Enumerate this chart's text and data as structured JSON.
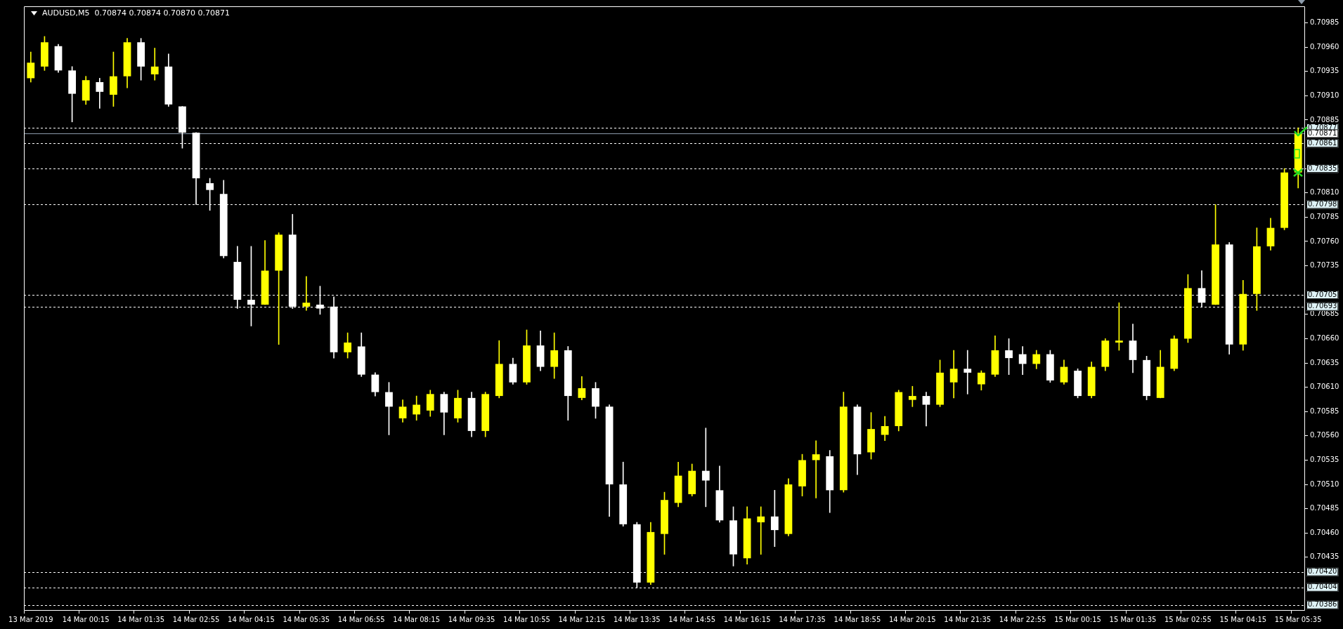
{
  "chart_data": {
    "type": "candlestick",
    "title": "AUDUSD,M5  0.70874 0.70874 0.70870 0.70871",
    "categories": [
      "13 Mar 2019",
      null,
      null,
      null,
      "14 Mar 00:15",
      null,
      null,
      null,
      "14 Mar 01:35",
      null,
      null,
      null,
      "14 Mar 02:55",
      null,
      null,
      null,
      "14 Mar 04:15",
      null,
      null,
      null,
      "14 Mar 05:35",
      null,
      null,
      null,
      "14 Mar 06:55",
      null,
      null,
      null,
      "14 Mar 08:15",
      null,
      null,
      null,
      "14 Mar 09:35",
      null,
      null,
      null,
      "14 Mar 10:55",
      null,
      null,
      null,
      "14 Mar 12:15",
      null,
      null,
      null,
      "14 Mar 13:35",
      null,
      null,
      null,
      "14 Mar 14:55",
      null,
      null,
      null,
      "14 Mar 16:15",
      null,
      null,
      null,
      "14 Mar 17:35",
      null,
      null,
      null,
      "14 Mar 18:55",
      null,
      null,
      null,
      "14 Mar 20:15",
      null,
      null,
      null,
      "14 Mar 21:35",
      null,
      null,
      null,
      "14 Mar 22:55",
      null,
      null,
      null,
      "15 Mar 00:15",
      null,
      null,
      null,
      "15 Mar 01:35",
      null,
      null,
      null,
      "15 Mar 02:55",
      null,
      null,
      null,
      "15 Mar 04:15",
      null,
      null,
      null,
      "15 Mar 05:35"
    ],
    "ohlc": [
      [
        0.70928,
        0.70955,
        0.70924,
        0.70944
      ],
      [
        0.7094,
        0.70971,
        0.70936,
        0.70965
      ],
      [
        0.70961,
        0.70963,
        0.70934,
        0.70936
      ],
      [
        0.70936,
        0.7094,
        0.70883,
        0.70912
      ],
      [
        0.70905,
        0.7093,
        0.70901,
        0.70926
      ],
      [
        0.70924,
        0.70928,
        0.70897,
        0.70914
      ],
      [
        0.70911,
        0.70955,
        0.70899,
        0.7093
      ],
      [
        0.7093,
        0.70969,
        0.70918,
        0.70965
      ],
      [
        0.70965,
        0.70969,
        0.70926,
        0.7094
      ],
      [
        0.70932,
        0.70959,
        0.70926,
        0.7094
      ],
      [
        0.7094,
        0.70953,
        0.70899,
        0.70901
      ],
      [
        0.70899,
        0.70899,
        0.70856,
        0.70872
      ],
      [
        0.70872,
        0.70872,
        0.70798,
        0.70825
      ],
      [
        0.7082,
        0.70825,
        0.70792,
        0.70813
      ],
      [
        0.70809,
        0.70823,
        0.70743,
        0.70745
      ],
      [
        0.70739,
        0.70755,
        0.70691,
        0.707
      ],
      [
        0.707,
        0.70755,
        0.70673,
        0.70695
      ],
      [
        0.70695,
        0.70761,
        0.70695,
        0.7073
      ],
      [
        0.7073,
        0.70769,
        0.70654,
        0.70767
      ],
      [
        0.70767,
        0.70788,
        0.70691,
        0.70693
      ],
      [
        0.70693,
        0.70724,
        0.70689,
        0.70697
      ],
      [
        0.70695,
        0.70714,
        0.70685,
        0.70691
      ],
      [
        0.70693,
        0.70703,
        0.7064,
        0.70646
      ],
      [
        0.70646,
        0.70666,
        0.7064,
        0.70656
      ],
      [
        0.70652,
        0.70666,
        0.70621,
        0.70623
      ],
      [
        0.70623,
        0.70625,
        0.70601,
        0.70605
      ],
      [
        0.70605,
        0.70615,
        0.70561,
        0.7059
      ],
      [
        0.70578,
        0.70597,
        0.70574,
        0.7059
      ],
      [
        0.70582,
        0.70601,
        0.70576,
        0.70592
      ],
      [
        0.70586,
        0.70607,
        0.7058,
        0.70603
      ],
      [
        0.70603,
        0.70605,
        0.70561,
        0.70584
      ],
      [
        0.70578,
        0.70607,
        0.70574,
        0.70599
      ],
      [
        0.70599,
        0.70605,
        0.70559,
        0.70565
      ],
      [
        0.70565,
        0.70605,
        0.70559,
        0.70603
      ],
      [
        0.70601,
        0.70658,
        0.70599,
        0.70634
      ],
      [
        0.70634,
        0.7064,
        0.70613,
        0.70615
      ],
      [
        0.70615,
        0.70669,
        0.70613,
        0.70653
      ],
      [
        0.70653,
        0.70668,
        0.70627,
        0.70631
      ],
      [
        0.70631,
        0.70666,
        0.70619,
        0.70648
      ],
      [
        0.70648,
        0.70652,
        0.70576,
        0.70601
      ],
      [
        0.70599,
        0.70621,
        0.70597,
        0.70609
      ],
      [
        0.70609,
        0.70615,
        0.70578,
        0.7059
      ],
      [
        0.7059,
        0.70592,
        0.70477,
        0.7051
      ],
      [
        0.7051,
        0.70533,
        0.70467,
        0.70469
      ],
      [
        0.70469,
        0.70471,
        0.70404,
        0.70409
      ],
      [
        0.70409,
        0.70471,
        0.70407,
        0.70461
      ],
      [
        0.70459,
        0.70502,
        0.70438,
        0.70494
      ],
      [
        0.70491,
        0.70533,
        0.70487,
        0.70519
      ],
      [
        0.705,
        0.70531,
        0.70498,
        0.70524
      ],
      [
        0.70524,
        0.70568,
        0.70487,
        0.70514
      ],
      [
        0.70504,
        0.70529,
        0.70471,
        0.70473
      ],
      [
        0.70473,
        0.70487,
        0.70426,
        0.70438
      ],
      [
        0.70434,
        0.70487,
        0.70428,
        0.70475
      ],
      [
        0.70471,
        0.70487,
        0.70438,
        0.70477
      ],
      [
        0.70477,
        0.70504,
        0.70446,
        0.70463
      ],
      [
        0.70459,
        0.70516,
        0.70457,
        0.7051
      ],
      [
        0.70508,
        0.70541,
        0.70498,
        0.70535
      ],
      [
        0.70535,
        0.70555,
        0.70496,
        0.70541
      ],
      [
        0.70539,
        0.70545,
        0.70481,
        0.70504
      ],
      [
        0.70504,
        0.70605,
        0.70502,
        0.7059
      ],
      [
        0.7059,
        0.70592,
        0.7052,
        0.70541
      ],
      [
        0.70543,
        0.70584,
        0.70536,
        0.70567
      ],
      [
        0.70561,
        0.7058,
        0.70555,
        0.7057
      ],
      [
        0.7057,
        0.70607,
        0.70565,
        0.70605
      ],
      [
        0.70597,
        0.70611,
        0.7059,
        0.70601
      ],
      [
        0.70601,
        0.70605,
        0.7057,
        0.70592
      ],
      [
        0.70592,
        0.70638,
        0.7059,
        0.70625
      ],
      [
        0.70615,
        0.70648,
        0.70599,
        0.70629
      ],
      [
        0.70629,
        0.70648,
        0.70603,
        0.70625
      ],
      [
        0.70613,
        0.70627,
        0.70607,
        0.70625
      ],
      [
        0.70623,
        0.70663,
        0.70621,
        0.70648
      ],
      [
        0.70648,
        0.7066,
        0.70623,
        0.7064
      ],
      [
        0.70644,
        0.70652,
        0.70623,
        0.70634
      ],
      [
        0.70634,
        0.70648,
        0.70629,
        0.70644
      ],
      [
        0.70644,
        0.70648,
        0.70615,
        0.70617
      ],
      [
        0.70615,
        0.70638,
        0.70613,
        0.70631
      ],
      [
        0.70627,
        0.70629,
        0.70599,
        0.70601
      ],
      [
        0.70601,
        0.70636,
        0.70599,
        0.70631
      ],
      [
        0.70631,
        0.7066,
        0.70627,
        0.70658
      ],
      [
        0.70656,
        0.70697,
        0.70648,
        0.70658
      ],
      [
        0.70658,
        0.70675,
        0.70625,
        0.70638
      ],
      [
        0.70638,
        0.70642,
        0.70597,
        0.70601
      ],
      [
        0.70599,
        0.70648,
        0.70599,
        0.70631
      ],
      [
        0.70629,
        0.70663,
        0.70627,
        0.7066
      ],
      [
        0.7066,
        0.70726,
        0.70656,
        0.70712
      ],
      [
        0.70712,
        0.7073,
        0.70693,
        0.70697
      ],
      [
        0.70695,
        0.70798,
        0.70695,
        0.70757
      ],
      [
        0.70757,
        0.70759,
        0.70644,
        0.70654
      ],
      [
        0.70654,
        0.7072,
        0.70648,
        0.70706
      ],
      [
        0.70706,
        0.70774,
        0.70689,
        0.70755
      ],
      [
        0.70755,
        0.70784,
        0.70751,
        0.70774
      ],
      [
        0.70774,
        0.70835,
        0.70772,
        0.70831
      ],
      [
        0.70831,
        0.70877,
        0.70815,
        0.70871
      ]
    ],
    "colors": [
      "#ffff00",
      "#ffff00",
      "#ffffff",
      "#ffffff",
      "#ffff00",
      "#ffffff",
      "#ffff00",
      "#ffff00",
      "#ffffff",
      "#ffff00",
      "#ffffff",
      "#ffffff",
      "#ffffff",
      "#ffffff",
      "#ffffff",
      "#ffffff",
      "#ffffff",
      "#ffff00",
      "#ffff00",
      "#ffffff",
      "#ffff00",
      "#ffffff",
      "#ffffff",
      "#ffff00",
      "#ffffff",
      "#ffffff",
      "#ffffff",
      "#ffff00",
      "#ffff00",
      "#ffff00",
      "#ffffff",
      "#ffff00",
      "#ffffff",
      "#ffff00",
      "#ffff00",
      "#ffffff",
      "#ffff00",
      "#ffffff",
      "#ffff00",
      "#ffffff",
      "#ffff00",
      "#ffffff",
      "#ffffff",
      "#ffffff",
      "#ffffff",
      "#ffff00",
      "#ffff00",
      "#ffff00",
      "#ffff00",
      "#ffffff",
      "#ffffff",
      "#ffffff",
      "#ffff00",
      "#ffff00",
      "#ffffff",
      "#ffff00",
      "#ffff00",
      "#ffff00",
      "#ffffff",
      "#ffff00",
      "#ffffff",
      "#ffff00",
      "#ffff00",
      "#ffff00",
      "#ffff00",
      "#ffffff",
      "#ffff00",
      "#ffff00",
      "#ffffff",
      "#ffff00",
      "#ffff00",
      "#ffffff",
      "#ffffff",
      "#ffff00",
      "#ffffff",
      "#ffff00",
      "#ffffff",
      "#ffff00",
      "#ffff00",
      "#ffff00",
      "#ffffff",
      "#ffffff",
      "#ffff00",
      "#ffff00",
      "#ffff00",
      "#ffffff",
      "#ffff00",
      "#ffffff",
      "#ffff00",
      "#ffff00",
      "#ffff00",
      "#ffff00",
      "#ffff00"
    ],
    "ylim": [
      0.7038,
      0.71002
    ],
    "yticks": [
      0.70435,
      {
        "value": 0.7046,
        "label": "0.70460"
      },
      0.70485,
      {
        "value": 0.7051,
        "label": "0.70510"
      },
      0.70535,
      {
        "value": 0.7056,
        "label": "0.70560"
      },
      0.70585,
      {
        "value": 0.7061,
        "label": "0.70610"
      },
      0.70635,
      {
        "value": 0.7066,
        "label": "0.70660"
      },
      0.70685,
      0.70735,
      {
        "value": 0.7076,
        "label": "0.70760"
      },
      0.70785,
      {
        "value": 0.7081,
        "label": "0.70810"
      },
      0.70835,
      0.70885,
      {
        "value": 0.7091,
        "label": "0.70910"
      },
      0.70935,
      {
        "value": 0.7096,
        "label": "0.70960"
      },
      0.70985
    ],
    "ref_lines": [
      {
        "axis": "y",
        "value": 0.70877,
        "label": "0.70877",
        "color": "#ffffff",
        "line_style": "dashed"
      },
      {
        "axis": "y",
        "value": 0.70871,
        "label": "0.70871",
        "color": "#8c9bab",
        "line_style": "solid"
      },
      {
        "axis": "y",
        "value": 0.70861,
        "label": "0.70861",
        "color": "#ffffff",
        "line_style": "dashed"
      },
      {
        "axis": "y",
        "value": 0.70835,
        "label": "0.70835",
        "color": "#ffffff",
        "line_style": "dashed"
      },
      {
        "axis": "y",
        "value": 0.70798,
        "label": "0.70798",
        "color": "#ffffff",
        "line_style": "dashed"
      },
      {
        "axis": "y",
        "value": 0.70705,
        "label": "0.70705",
        "color": "#ffffff",
        "line_style": "dashed"
      },
      {
        "axis": "y",
        "value": 0.70693,
        "label": "0.70693",
        "color": "#ffffff",
        "line_style": "dashed"
      },
      {
        "axis": "y",
        "value": 0.7042,
        "label": "0.70420",
        "color": "#ffffff",
        "line_style": "dashed"
      },
      {
        "axis": "y",
        "value": 0.70404,
        "label": "0.70404",
        "color": "#ffffff",
        "line_style": "dashed"
      },
      {
        "axis": "y",
        "value": 0.70386,
        "label": "0.70386",
        "color": "#ffffff",
        "line_style": "dashed"
      }
    ]
  }
}
